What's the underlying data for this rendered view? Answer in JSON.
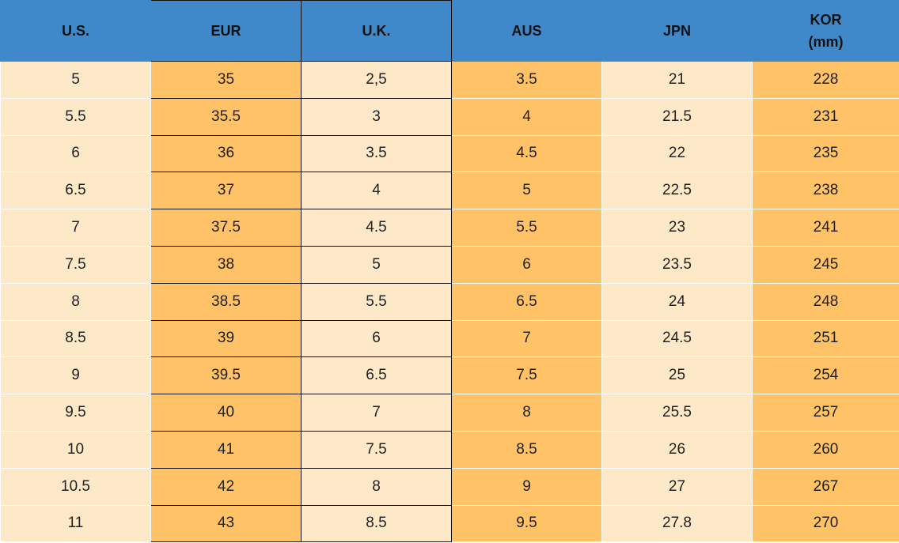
{
  "table": {
    "header": [
      "U.S.",
      "EUR",
      "U.K.",
      "AUS",
      "JPN",
      "KOR\n(mm)"
    ],
    "rows": [
      [
        "5",
        "35",
        "2,5",
        "3.5",
        "21",
        "228"
      ],
      [
        "5.5",
        "35.5",
        "3",
        "4",
        "21.5",
        "231"
      ],
      [
        "6",
        "36",
        "3.5",
        "4.5",
        "22",
        "235"
      ],
      [
        "6.5",
        "37",
        "4",
        "5",
        "22.5",
        "238"
      ],
      [
        "7",
        "37.5",
        "4.5",
        "5.5",
        "23",
        "241"
      ],
      [
        "7.5",
        "38",
        "5",
        "6",
        "23.5",
        "245"
      ],
      [
        "8",
        "38.5",
        "5.5",
        "6.5",
        "24",
        "248"
      ],
      [
        "8.5",
        "39",
        "6",
        "7",
        "24.5",
        "251"
      ],
      [
        "9",
        "39.5",
        "6.5",
        "7.5",
        "25",
        "254"
      ],
      [
        "9.5",
        "40",
        "7",
        "8",
        "25.5",
        "257"
      ],
      [
        "10",
        "41",
        "7.5",
        "8.5",
        "26",
        "260"
      ],
      [
        "10.5",
        "42",
        "8",
        "9",
        "27",
        "267"
      ],
      [
        "11",
        "43",
        "8.5",
        "9.5",
        "27.8",
        "270"
      ]
    ]
  }
}
